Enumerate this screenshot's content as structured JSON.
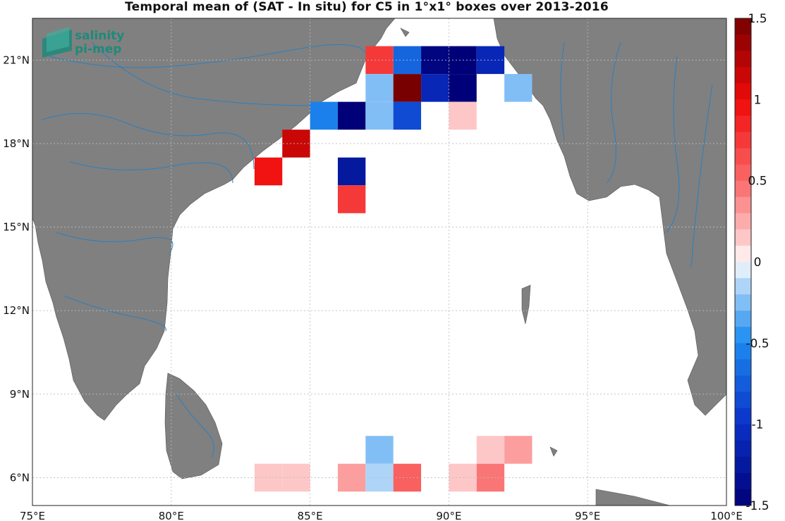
{
  "title": "Temporal mean of (SAT - In situ) for C5 in 1°x1° boxes over 2013-2016",
  "logo": {
    "line1": "salinity",
    "line2": "pi-mep"
  },
  "map": {
    "lon_range": [
      75,
      100
    ],
    "lat_range": [
      5,
      22.5
    ],
    "x_ticks": [
      {
        "value": 75,
        "label": "75°E"
      },
      {
        "value": 80,
        "label": "80°E"
      },
      {
        "value": 85,
        "label": "85°E"
      },
      {
        "value": 90,
        "label": "90°E"
      },
      {
        "value": 95,
        "label": "95°E"
      },
      {
        "value": 100,
        "label": "100°E"
      }
    ],
    "y_ticks": [
      {
        "value": 6,
        "label": "6°N"
      },
      {
        "value": 9,
        "label": "9°N"
      },
      {
        "value": 12,
        "label": "12°N"
      },
      {
        "value": 15,
        "label": "15°N"
      },
      {
        "value": 18,
        "label": "18°N"
      },
      {
        "value": 21,
        "label": "21°N"
      }
    ],
    "grid": true,
    "land_color": "#808080",
    "river_color": "#2b7fc0"
  },
  "colorbar": {
    "min": -1.5,
    "max": 1.5,
    "levels": 30,
    "ticks": [
      {
        "value": 1.5,
        "label": "1.5"
      },
      {
        "value": 1,
        "label": "1"
      },
      {
        "value": 0.5,
        "label": "0.5"
      },
      {
        "value": 0,
        "label": "0"
      },
      {
        "value": -0.5,
        "label": "-0.5"
      },
      {
        "value": -1,
        "label": "-1"
      },
      {
        "value": -1.5,
        "label": "-1.5"
      }
    ]
  },
  "chart_data": {
    "type": "heatmap",
    "title": "Temporal mean of (SAT - In situ) for C5 in 1°x1° boxes over 2013-2016",
    "xlabel": "",
    "ylabel": "",
    "cells": [
      {
        "lon": 87,
        "lat": 21,
        "value": 0.75
      },
      {
        "lon": 88,
        "lat": 21,
        "value": -0.7
      },
      {
        "lon": 89,
        "lat": 21,
        "value": -1.45
      },
      {
        "lon": 90,
        "lat": 21,
        "value": -1.5
      },
      {
        "lon": 91,
        "lat": 21,
        "value": -1.1
      },
      {
        "lon": 87,
        "lat": 20,
        "value": -0.25
      },
      {
        "lon": 88,
        "lat": 20,
        "value": 1.5
      },
      {
        "lon": 89,
        "lat": 20,
        "value": -1.1
      },
      {
        "lon": 90,
        "lat": 20,
        "value": -1.5
      },
      {
        "lon": 92,
        "lat": 20,
        "value": -0.25
      },
      {
        "lon": 85,
        "lat": 19,
        "value": -0.55
      },
      {
        "lon": 86,
        "lat": 19,
        "value": -1.5
      },
      {
        "lon": 87,
        "lat": 19,
        "value": -0.25
      },
      {
        "lon": 88,
        "lat": 19,
        "value": -0.85
      },
      {
        "lon": 90,
        "lat": 19,
        "value": 0.15
      },
      {
        "lon": 84,
        "lat": 18,
        "value": 1.15
      },
      {
        "lon": 83,
        "lat": 17,
        "value": 0.95
      },
      {
        "lon": 86,
        "lat": 17,
        "value": -1.25
      },
      {
        "lon": 86,
        "lat": 16,
        "value": 0.75
      },
      {
        "lon": 87,
        "lat": 7,
        "value": -0.25
      },
      {
        "lon": 91,
        "lat": 7,
        "value": 0.15
      },
      {
        "lon": 92,
        "lat": 7,
        "value": 0.3
      },
      {
        "lon": 83,
        "lat": 6,
        "value": 0.15
      },
      {
        "lon": 84,
        "lat": 6,
        "value": 0.15
      },
      {
        "lon": 86,
        "lat": 6,
        "value": 0.3
      },
      {
        "lon": 87,
        "lat": 6,
        "value": -0.15
      },
      {
        "lon": 88,
        "lat": 6,
        "value": 0.55
      },
      {
        "lon": 90,
        "lat": 6,
        "value": 0.15
      },
      {
        "lon": 91,
        "lat": 6,
        "value": 0.45
      }
    ]
  }
}
